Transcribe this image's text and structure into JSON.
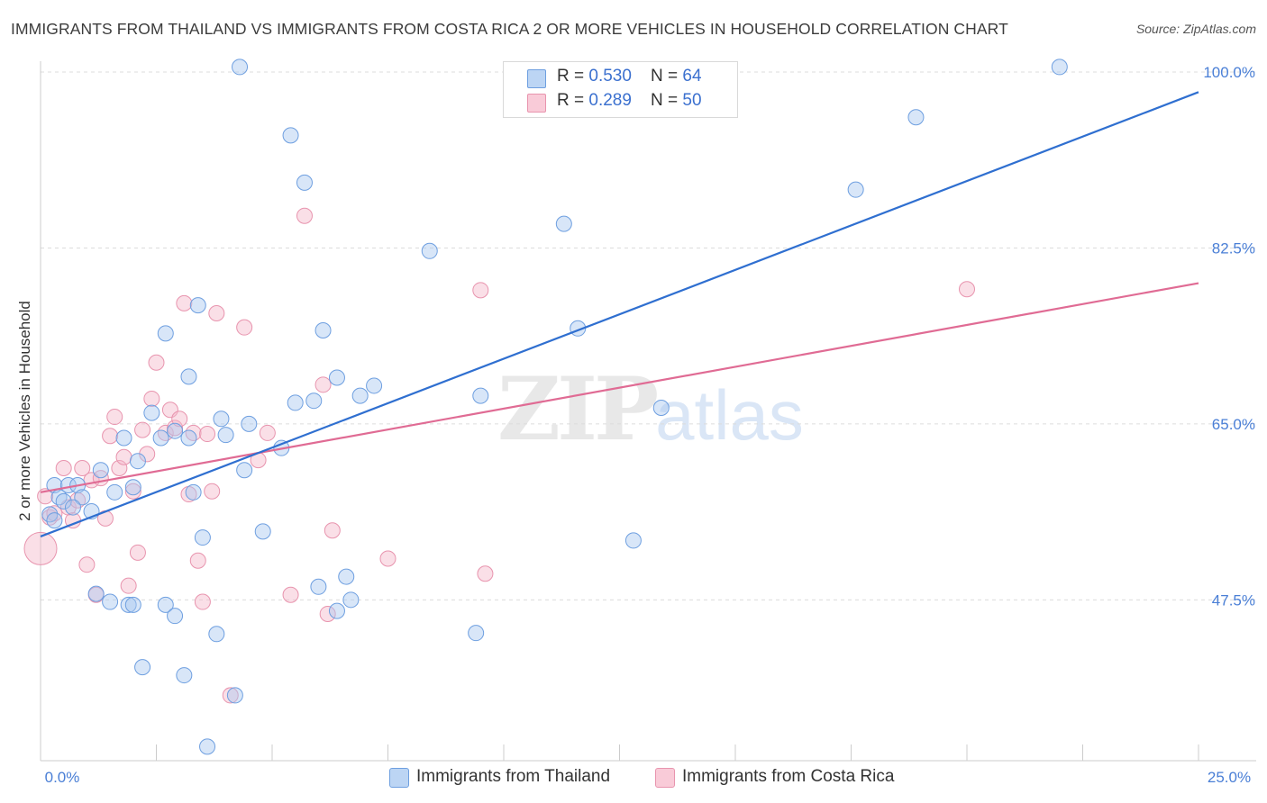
{
  "title": "IMMIGRANTS FROM THAILAND VS IMMIGRANTS FROM COSTA RICA 2 OR MORE VEHICLES IN HOUSEHOLD CORRELATION CHART",
  "source": "Source: ZipAtlas.com",
  "watermark": {
    "part1": "ZIP",
    "part2": "atlas"
  },
  "legend": {
    "rows": [
      {
        "r_label": "R = ",
        "r_value": "0.530",
        "n_label": "N = ",
        "n_value": "64"
      },
      {
        "r_label": "R = ",
        "r_value": "0.289",
        "n_label": "N = ",
        "n_value": "50"
      }
    ]
  },
  "bottom_legend": {
    "thailand": "Immigrants from Thailand",
    "costa_rica": "Immigrants from Costa Rica"
  },
  "colors": {
    "thailand_fill": "#a9c8f0",
    "thailand_stroke": "#6e9fe0",
    "thailand_line": "#2f6fd0",
    "costa_rica_fill": "#f5b7c9",
    "costa_rica_stroke": "#e894ae",
    "costa_rica_line": "#e06b94",
    "tick_label": "#4a7fd6"
  },
  "chart_data": {
    "type": "scatter",
    "title": "IMMIGRANTS FROM THAILAND VS IMMIGRANTS FROM COSTA RICA 2 OR MORE VEHICLES IN HOUSEHOLD CORRELATION CHART",
    "xlabel": "",
    "ylabel": "2 or more Vehicles in Household",
    "xlim": [
      0,
      25
    ],
    "ylim": [
      31.5,
      100
    ],
    "x_tick_labels": [
      "0.0%",
      "25.0%"
    ],
    "y_ticks": [
      47.5,
      65.0,
      82.5,
      100.0
    ],
    "y_tick_labels": [
      "47.5%",
      "65.0%",
      "82.5%",
      "100.0%"
    ],
    "grid": true,
    "legend_position": "top-center",
    "series": [
      {
        "name": "Immigrants from Thailand",
        "r": 0.53,
        "n": 64,
        "trend": {
          "x": [
            0,
            25
          ],
          "y": [
            53.8,
            98.0
          ]
        },
        "points": [
          [
            0.3,
            58.9
          ],
          [
            0.6,
            58.9
          ],
          [
            0.4,
            57.7
          ],
          [
            0.5,
            57.3
          ],
          [
            0.8,
            58.9
          ],
          [
            0.9,
            57.7
          ],
          [
            0.7,
            56.7
          ],
          [
            1.1,
            56.3
          ],
          [
            1.3,
            60.4
          ],
          [
            1.6,
            58.2
          ],
          [
            1.8,
            63.6
          ],
          [
            2.0,
            58.7
          ],
          [
            2.1,
            61.3
          ],
          [
            2.4,
            66.1
          ],
          [
            2.6,
            63.6
          ],
          [
            2.7,
            74.0
          ],
          [
            3.2,
            63.6
          ],
          [
            3.2,
            69.7
          ],
          [
            3.3,
            58.2
          ],
          [
            3.4,
            76.8
          ],
          [
            3.5,
            53.7
          ],
          [
            3.8,
            44.1
          ],
          [
            3.9,
            65.5
          ],
          [
            4.0,
            63.9
          ],
          [
            4.3,
            100.5
          ],
          [
            4.4,
            60.4
          ],
          [
            4.5,
            65.0
          ],
          [
            4.8,
            54.3
          ],
          [
            5.2,
            62.6
          ],
          [
            5.4,
            93.7
          ],
          [
            5.5,
            67.1
          ],
          [
            5.7,
            89.0
          ],
          [
            5.9,
            67.3
          ],
          [
            6.0,
            48.8
          ],
          [
            6.1,
            74.3
          ],
          [
            6.4,
            69.6
          ],
          [
            6.6,
            49.8
          ],
          [
            6.7,
            47.5
          ],
          [
            6.9,
            67.8
          ],
          [
            7.2,
            68.8
          ],
          [
            1.5,
            47.3
          ],
          [
            1.9,
            47.0
          ],
          [
            2.0,
            47.0
          ],
          [
            2.7,
            47.0
          ],
          [
            2.9,
            45.9
          ],
          [
            3.1,
            40.0
          ],
          [
            2.2,
            40.8
          ],
          [
            4.2,
            38.0
          ],
          [
            3.6,
            32.9
          ],
          [
            8.4,
            82.2
          ],
          [
            9.4,
            44.2
          ],
          [
            9.5,
            67.8
          ],
          [
            11.3,
            84.9
          ],
          [
            11.6,
            74.5
          ],
          [
            12.8,
            53.4
          ],
          [
            13.4,
            66.6
          ],
          [
            17.6,
            88.3
          ],
          [
            18.9,
            95.5
          ],
          [
            22.0,
            100.5
          ],
          [
            1.2,
            48.1
          ],
          [
            6.4,
            46.4
          ],
          [
            0.2,
            56.0
          ],
          [
            0.3,
            55.4
          ],
          [
            2.9,
            64.3
          ]
        ]
      },
      {
        "name": "Immigrants from Costa Rica",
        "r": 0.289,
        "n": 50,
        "trend": {
          "x": [
            0,
            25
          ],
          "y": [
            58.2,
            79.0
          ]
        },
        "points": [
          [
            0.0,
            52.6
          ],
          [
            0.2,
            55.7
          ],
          [
            0.3,
            56.1
          ],
          [
            0.5,
            60.6
          ],
          [
            0.6,
            56.7
          ],
          [
            0.7,
            55.4
          ],
          [
            0.8,
            57.4
          ],
          [
            0.9,
            60.6
          ],
          [
            1.0,
            51.0
          ],
          [
            1.1,
            59.4
          ],
          [
            1.2,
            48.0
          ],
          [
            1.3,
            59.6
          ],
          [
            1.4,
            55.6
          ],
          [
            1.5,
            63.8
          ],
          [
            1.6,
            65.7
          ],
          [
            1.7,
            60.6
          ],
          [
            1.8,
            61.7
          ],
          [
            1.9,
            48.9
          ],
          [
            2.0,
            58.3
          ],
          [
            2.1,
            52.2
          ],
          [
            2.2,
            64.4
          ],
          [
            2.3,
            62.0
          ],
          [
            2.4,
            67.5
          ],
          [
            2.5,
            71.1
          ],
          [
            2.7,
            64.1
          ],
          [
            2.8,
            66.4
          ],
          [
            2.9,
            64.6
          ],
          [
            3.0,
            65.5
          ],
          [
            3.1,
            77.0
          ],
          [
            3.2,
            58.0
          ],
          [
            3.3,
            64.1
          ],
          [
            3.4,
            51.4
          ],
          [
            3.5,
            47.3
          ],
          [
            3.6,
            64.0
          ],
          [
            3.7,
            58.3
          ],
          [
            3.8,
            76.0
          ],
          [
            4.1,
            38.0
          ],
          [
            4.4,
            74.6
          ],
          [
            4.7,
            61.4
          ],
          [
            4.9,
            64.1
          ],
          [
            5.4,
            48.0
          ],
          [
            5.7,
            85.7
          ],
          [
            6.1,
            68.9
          ],
          [
            6.2,
            46.1
          ],
          [
            6.3,
            54.4
          ],
          [
            7.5,
            51.6
          ],
          [
            9.5,
            78.3
          ],
          [
            9.6,
            50.1
          ],
          [
            20.0,
            78.4
          ],
          [
            0.1,
            57.8
          ]
        ]
      }
    ]
  }
}
